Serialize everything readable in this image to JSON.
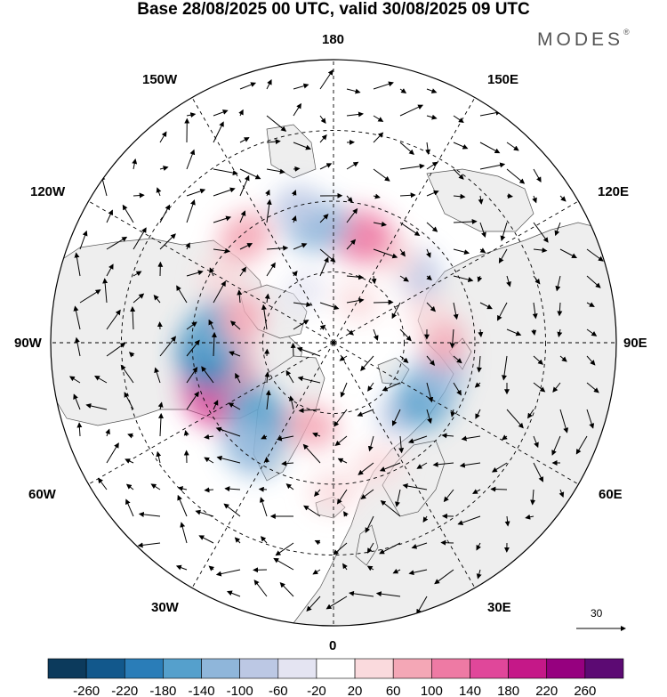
{
  "title": "Base 28/08/2025 00 UTC, valid 30/08/2025 09 UTC",
  "brand": "MODES",
  "brand_mark": "®",
  "longitude_labels": {
    "lon_180": "180",
    "lon_150w": "150W",
    "lon_150e": "150E",
    "lon_120w": "120W",
    "lon_120e": "120E",
    "lon_90w": "90W",
    "lon_90e": "90E",
    "lon_60w": "60W",
    "lon_60e": "60E",
    "lon_30w": "30W",
    "lon_30e": "30E",
    "lon_0": "0"
  },
  "reference_vector": {
    "value": "30"
  },
  "colorbar": {
    "ticks": [
      "-260",
      "-220",
      "-180",
      "-140",
      "-100",
      "-60",
      "-20",
      "20",
      "60",
      "100",
      "140",
      "180",
      "220",
      "260"
    ],
    "colors": [
      "#0c3a5c",
      "#12588c",
      "#2a7db8",
      "#55a0cc",
      "#8fb6da",
      "#bcc8e4",
      "#e4e4f2",
      "#ffffff",
      "#fadadd",
      "#f4a7b6",
      "#ee7aa4",
      "#e0479a",
      "#c51888",
      "#96007f",
      "#5c0a73"
    ]
  },
  "anomaly_colors": {
    "land": "#eeeeee",
    "ocean": "#ffffff",
    "coast": "#555555",
    "graticule": "#000000"
  },
  "anomaly_blobs": [
    {
      "lon": -75,
      "colat": 30,
      "value": 240
    },
    {
      "lon": -68,
      "colat": 33,
      "value": 180
    },
    {
      "lon": -80,
      "colat": 27,
      "value": 100
    },
    {
      "lon": -85,
      "colat": 32,
      "value": -180
    },
    {
      "lon": -95,
      "colat": 30,
      "value": -140
    },
    {
      "lon": -45,
      "colat": 27,
      "value": -160
    },
    {
      "lon": -38,
      "colat": 34,
      "value": -120
    },
    {
      "lon": -15,
      "colat": 22,
      "value": 80
    },
    {
      "lon": 0,
      "colat": 38,
      "value": 60
    },
    {
      "lon": 20,
      "colat": 33,
      "value": 60
    },
    {
      "lon": 45,
      "colat": 25,
      "value": -80
    },
    {
      "lon": 60,
      "colat": 27,
      "value": -160
    },
    {
      "lon": 75,
      "colat": 28,
      "value": -120
    },
    {
      "lon": 90,
      "colat": 28,
      "value": 80
    },
    {
      "lon": 110,
      "colat": 25,
      "value": 60
    },
    {
      "lon": 130,
      "colat": 28,
      "value": -80
    },
    {
      "lon": 145,
      "colat": 27,
      "value": 60
    },
    {
      "lon": 165,
      "colat": 28,
      "value": 140
    },
    {
      "lon": -172,
      "colat": 30,
      "value": -130
    },
    {
      "lon": -165,
      "colat": 36,
      "value": -60
    },
    {
      "lon": -140,
      "colat": 35,
      "value": 100
    },
    {
      "lon": -120,
      "colat": 33,
      "value": 60
    },
    {
      "lon": -105,
      "colat": 24,
      "value": 80
    },
    {
      "lon": 150,
      "colat": 12,
      "value": 40
    },
    {
      "lon": -150,
      "colat": 15,
      "value": -40
    }
  ]
}
